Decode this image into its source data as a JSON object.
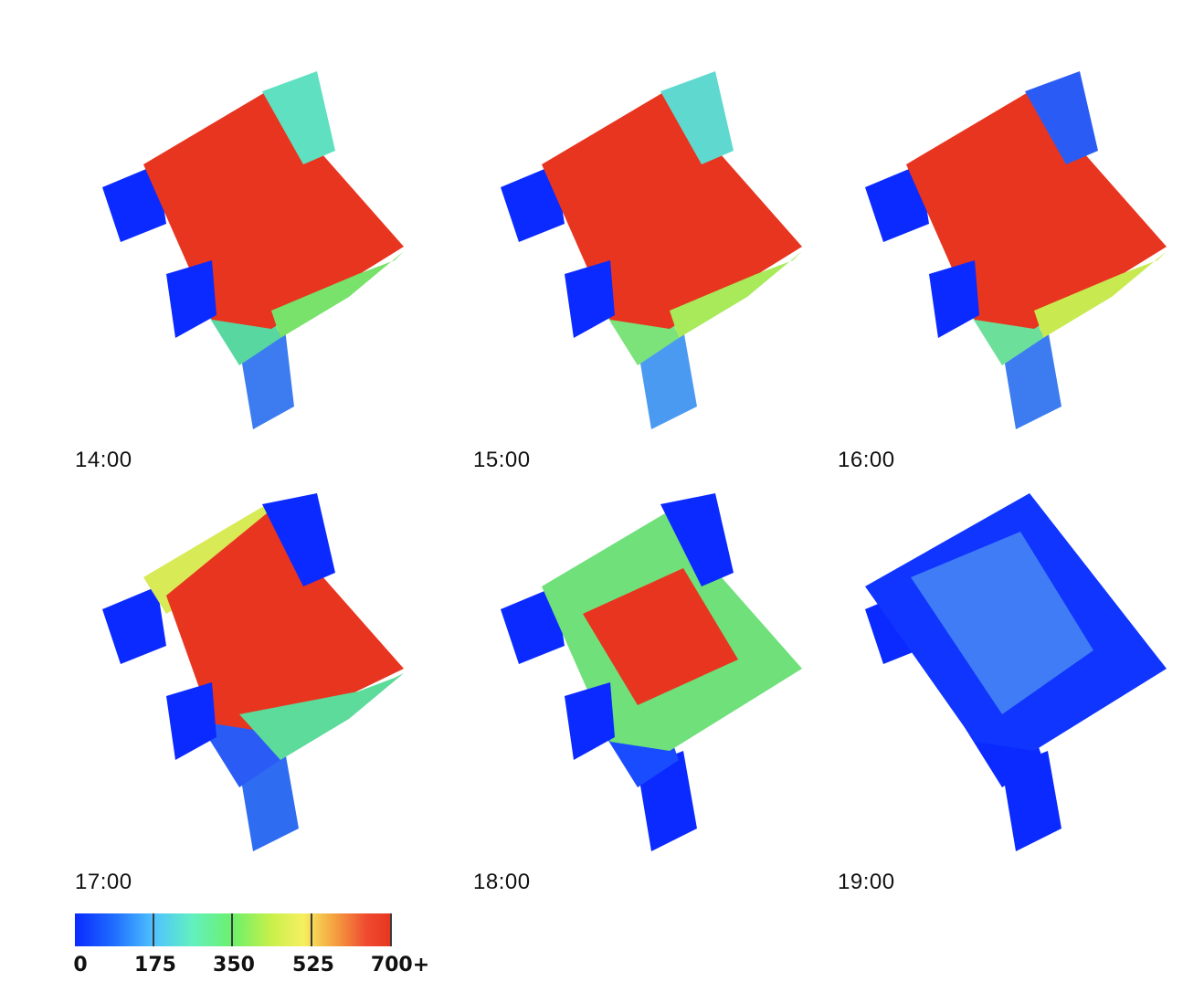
{
  "panels": [
    {
      "id": "p1400",
      "label": "14:00"
    },
    {
      "id": "p1500",
      "label": "15:00"
    },
    {
      "id": "p1600",
      "label": "16:00"
    },
    {
      "id": "p1700",
      "label": "17:00"
    },
    {
      "id": "p1800",
      "label": "18:00"
    },
    {
      "id": "p1900",
      "label": "19:00"
    }
  ],
  "legend": {
    "ticks": [
      "0",
      "175",
      "350",
      "525",
      "700+"
    ],
    "colors": {
      "low": "#0a2aff",
      "mid_low": "#4fc3ff",
      "mid": "#6df06a",
      "mid_high": "#f5f060",
      "high": "#e8351f"
    }
  }
}
